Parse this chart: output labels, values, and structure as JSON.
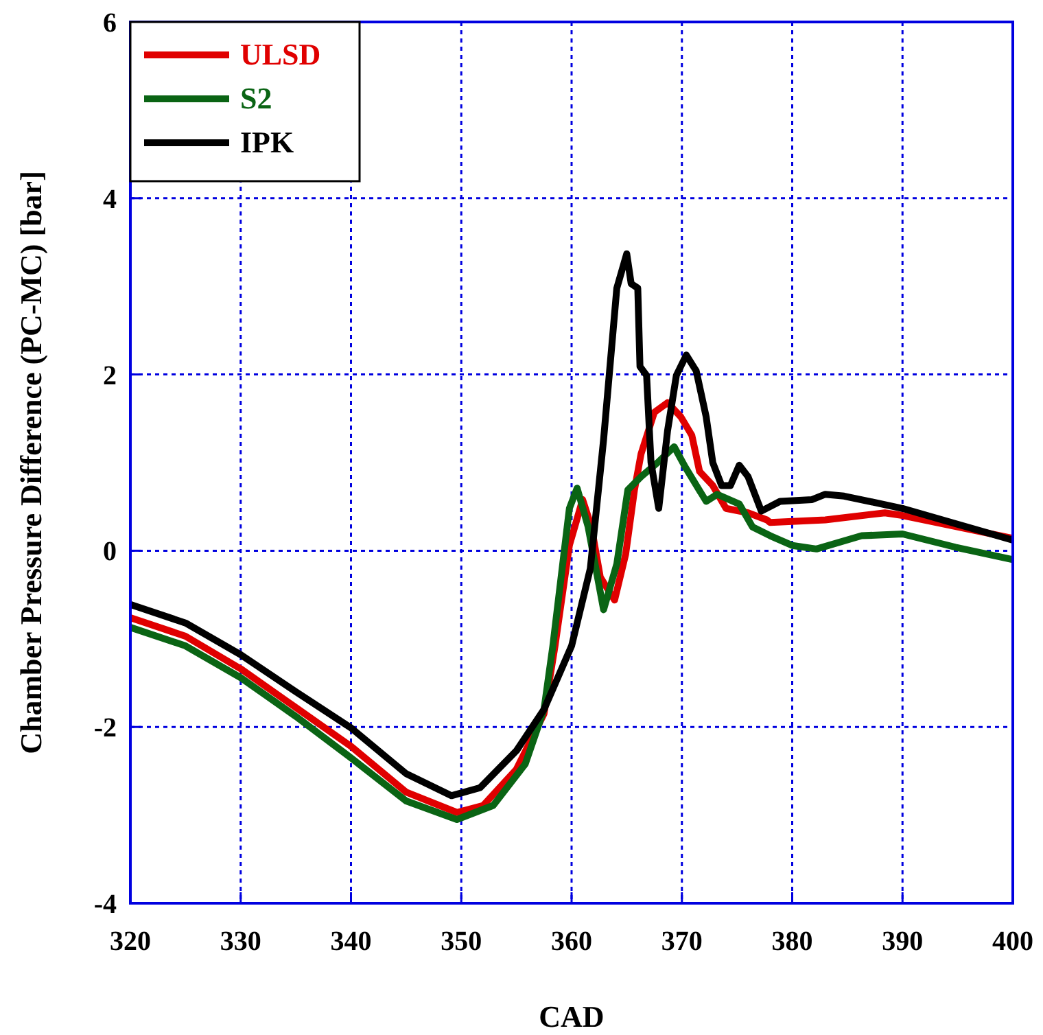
{
  "chart_data": {
    "type": "line",
    "xlabel": "CAD",
    "ylabel": "Chamber Pressure Difference (PC-MC) [bar]",
    "xlim": [
      320,
      400
    ],
    "xticks": [
      320,
      330,
      340,
      350,
      360,
      370,
      380,
      390,
      400
    ],
    "ylim": [
      -4,
      6
    ],
    "yticks": [
      -4,
      -2,
      0,
      2,
      4,
      6
    ],
    "grid": true,
    "legend": "top left",
    "marker": "none",
    "line_style": "solid",
    "series": [
      {
        "name": "ULSD",
        "color": "#e00000",
        "x": [
          320,
          325,
          330,
          335,
          340,
          345,
          349.6,
          352,
          355,
          357.5,
          358.5,
          359.8,
          361,
          361.8,
          362.6,
          363.9,
          364.9,
          365.7,
          366.3,
          367.5,
          368.7,
          369.9,
          370.9,
          371.6,
          372.8,
          374,
          376,
          377.7,
          378,
          383,
          388.4,
          390,
          400
        ],
        "values": [
          -0.76,
          -0.97,
          -1.34,
          -1.78,
          -2.22,
          -2.74,
          -2.97,
          -2.89,
          -2.48,
          -1.85,
          -1.08,
          0.06,
          0.58,
          0.27,
          -0.3,
          -0.56,
          -0.04,
          0.69,
          1.1,
          1.57,
          1.68,
          1.52,
          1.31,
          0.9,
          0.74,
          0.48,
          0.43,
          0.35,
          0.32,
          0.35,
          0.43,
          0.4,
          0.14
        ]
      },
      {
        "name": "S2",
        "color": "#0a6414",
        "x": [
          320,
          325,
          330,
          335,
          340,
          345,
          349.6,
          352.9,
          355.8,
          357.5,
          358.3,
          359.8,
          360.5,
          361.5,
          362.9,
          364.1,
          365.1,
          366.3,
          367.8,
          369.3,
          370.3,
          372.2,
          373.2,
          375.2,
          376.4,
          378,
          380,
          382.2,
          386.3,
          390,
          394.8,
          400
        ],
        "values": [
          -0.87,
          -1.08,
          -1.44,
          -1.88,
          -2.35,
          -2.84,
          -3.05,
          -2.89,
          -2.42,
          -1.8,
          -1.08,
          0.48,
          0.71,
          0.27,
          -0.67,
          -0.15,
          0.69,
          0.84,
          1.0,
          1.18,
          0.95,
          0.56,
          0.64,
          0.53,
          0.27,
          0.17,
          0.06,
          0.02,
          0.17,
          0.19,
          0.04,
          -0.1
        ]
      },
      {
        "name": "IPK",
        "color": "#000000",
        "x": [
          320,
          325,
          330,
          335,
          340,
          345,
          349.1,
          351.7,
          355,
          357.5,
          360,
          361.7,
          362.9,
          364.1,
          365,
          365.4,
          366,
          366.2,
          366.8,
          367.2,
          367.9,
          368.7,
          369.5,
          370.4,
          371.3,
          372.2,
          372.8,
          373.6,
          374.4,
          375.2,
          376,
          377.2,
          378.9,
          381.8,
          383,
          384.7,
          390,
          400
        ],
        "values": [
          -0.61,
          -0.82,
          -1.18,
          -1.6,
          -2.01,
          -2.53,
          -2.78,
          -2.69,
          -2.27,
          -1.8,
          -1.08,
          -0.2,
          1.26,
          2.98,
          3.37,
          3.03,
          2.98,
          2.09,
          1.99,
          1.0,
          0.48,
          1.36,
          1.99,
          2.22,
          2.04,
          1.52,
          1.0,
          0.74,
          0.74,
          0.97,
          0.84,
          0.45,
          0.56,
          0.58,
          0.64,
          0.62,
          0.48,
          0.12
        ]
      }
    ]
  }
}
